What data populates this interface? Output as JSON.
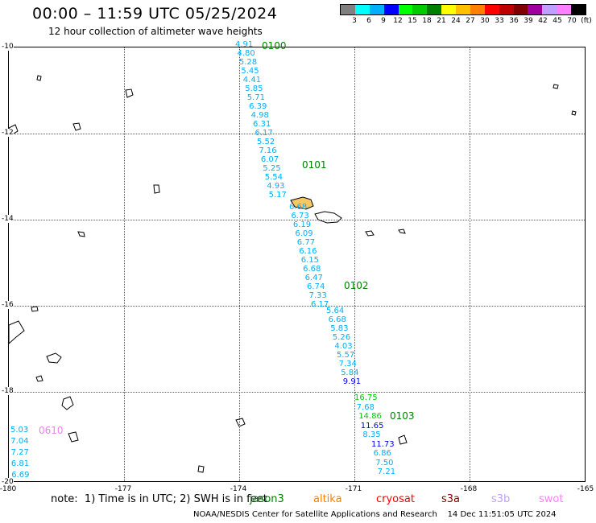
{
  "header": {
    "title": "00:00 – 11:59 UTC 05/25/2024",
    "subtitle": "12 hour collection of altimeter wave heights"
  },
  "color_scale": {
    "colors": [
      "#808080",
      "#00ffff",
      "#00b0ff",
      "#0000ff",
      "#00ff00",
      "#00cc00",
      "#008000",
      "#ffff00",
      "#ffc000",
      "#ff8000",
      "#ff0000",
      "#c00000",
      "#800000",
      "#a000a0",
      "#c0a0ff",
      "#ff80ff",
      "#000000"
    ],
    "labels": [
      "3",
      "6",
      "9",
      "12",
      "15",
      "18",
      "21",
      "24",
      "27",
      "30",
      "33",
      "36",
      "39",
      "42",
      "45",
      "70",
      "(ft)"
    ]
  },
  "axes": {
    "lat_labels": [
      "-10",
      "-12",
      "-14",
      "-16",
      "-18",
      "-20"
    ],
    "lon_labels": [
      "-180",
      "-177",
      "-174",
      "-171",
      "-168",
      "-165"
    ]
  },
  "tracks": [
    {
      "time": "0100",
      "time_color": "green",
      "values": [
        "4.91",
        "4.80",
        "5.28",
        "5.45",
        "4.41",
        "5.85",
        "5.71",
        "6.39",
        "4.98",
        "6.31",
        "6.17",
        "5.52",
        "7.16",
        "6.07",
        "5.25",
        "5.54",
        "4.93",
        "5.17"
      ]
    },
    {
      "time": "0101",
      "time_color": "green",
      "values": [
        "6.68",
        "6.73",
        "6.19",
        "6.09",
        "6.77",
        "6.16",
        "6.15",
        "6.68",
        "6.47",
        "6.74",
        "7.33",
        "6.17"
      ]
    },
    {
      "time": "0102",
      "time_color": "green",
      "values": [
        "5.64",
        "6.68",
        "5.83",
        "5.26",
        "4.03",
        "5.57",
        "7.34",
        "5.84",
        "9.91"
      ]
    },
    {
      "time": "0103",
      "time_color": "green",
      "values": [
        "16.75",
        "7.68",
        "14.86",
        "11.65",
        "8.35",
        "11.73",
        "6.86",
        "7.50",
        "7.21"
      ]
    },
    {
      "time": "0610",
      "time_color": "pink",
      "values": [
        "5.03",
        "7.04",
        "7.27",
        "6.81",
        "6.69"
      ]
    }
  ],
  "footer": {
    "note": "note:  1) Time is in UTC; 2) SWH is in feet",
    "satellites": [
      {
        "name": "jason3",
        "color": "#008000"
      },
      {
        "name": "altika",
        "color": "#ff8000"
      },
      {
        "name": "cryosat",
        "color": "#ff0000"
      },
      {
        "name": "s3a",
        "color": "#800000"
      },
      {
        "name": "s3b",
        "color": "#c0a0ff"
      },
      {
        "name": "swot",
        "color": "#ff80ff"
      }
    ],
    "credit": "NOAA/NESDIS Center for Satellite Applications and Research    14 Dec 11:51:05 UTC 2024"
  }
}
